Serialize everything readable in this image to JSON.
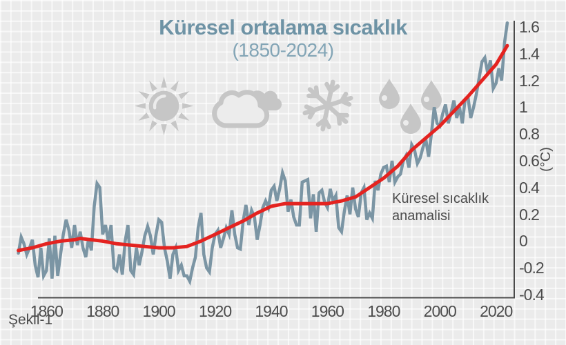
{
  "title": "Küresel ortalama sıcaklık",
  "subtitle": "(1850-2024)",
  "caption": "Şekil-1",
  "unit_label": "(°C)",
  "annotation": {
    "line1": "Küresel sıcaklık",
    "line2": "anamalisi"
  },
  "icons": [
    "sun-icon",
    "cloud-icon",
    "snowflake-icon",
    "raindrops-icon"
  ],
  "colors": {
    "title": "#6e93a5",
    "subtitle": "#83a5b6",
    "anomaly_blue": "#7b95a4",
    "trend_red": "#e42320",
    "axis": "#4a4a4a",
    "tick_text": "#4c4c4c",
    "background": "#ebebeb",
    "icon_gray": "#c6c6c6"
  },
  "chart_data": {
    "type": "line",
    "title": "Küresel ortalama sıcaklık (1850-2024)",
    "xlabel": "",
    "ylabel": "(°C)",
    "xlim": [
      1850,
      2025
    ],
    "ylim": [
      -0.4,
      1.6
    ],
    "grid": true,
    "legend_position": "none",
    "x_start": 1850,
    "x_step": 1,
    "xticks": [
      1860,
      1880,
      1900,
      1920,
      1940,
      1960,
      1980,
      2000,
      2020
    ],
    "yticks": [
      {
        "value": 1.6,
        "label": "1.6"
      },
      {
        "value": 1.4,
        "label": "1.4"
      },
      {
        "value": 1.2,
        "label": "1.2"
      },
      {
        "value": 1,
        "label": "1"
      },
      {
        "value": 0.8,
        "label": "0.8"
      },
      {
        "value": 0.6,
        "label": "0.6"
      },
      {
        "value": 0.4,
        "label": "0.4"
      },
      {
        "value": 0.2,
        "label": "0.2"
      },
      {
        "value": 0,
        "label": "0"
      },
      {
        "value": -0.2,
        "label": "-0.2"
      },
      {
        "value": -0.4,
        "label": "-0.4"
      }
    ],
    "series": [
      {
        "name": "Küresel sıcaklık anamalisi",
        "color": "#7b95a4",
        "values": [
          -0.09,
          0.03,
          -0.02,
          -0.1,
          -0.05,
          0.01,
          -0.18,
          -0.27,
          -0.05,
          -0.26,
          -0.22,
          0.02,
          -0.28,
          0.04,
          -0.26,
          -0.1,
          0.05,
          0.16,
          0.08,
          -0.05,
          0.12,
          -0.03,
          0.07,
          -0.05,
          -0.12,
          0.02,
          -0.07,
          0.26,
          0.43,
          0.4,
          0.05,
          0.12,
          0.0,
          0.12,
          -0.2,
          -0.22,
          -0.1,
          -0.25,
          0.0,
          0.12,
          -0.22,
          -0.25,
          -0.05,
          -0.18,
          -0.08,
          0.04,
          0.11,
          0.04,
          -0.1,
          0.05,
          0.16,
          0.14,
          -0.05,
          -0.15,
          -0.28,
          -0.1,
          -0.05,
          -0.22,
          -0.18,
          -0.26,
          -0.26,
          -0.3,
          -0.2,
          -0.12,
          0.1,
          0.21,
          -0.1,
          -0.2,
          -0.23,
          -0.05,
          0.05,
          0.08,
          -0.05,
          0.02,
          0.1,
          0.05,
          0.23,
          0.05,
          -0.05,
          -0.06,
          0.15,
          0.27,
          0.12,
          0.23,
          0.18,
          0.01,
          0.12,
          0.25,
          0.3,
          0.25,
          0.38,
          0.41,
          0.3,
          0.39,
          0.51,
          0.45,
          0.22,
          0.31,
          0.18,
          0.12,
          0.12,
          0.44,
          0.45,
          0.46,
          0.17,
          0.35,
          0.07,
          0.36,
          0.38,
          0.29,
          0.25,
          0.39,
          0.3,
          0.34,
          0.1,
          0.07,
          0.22,
          0.34,
          0.2,
          0.4,
          0.24,
          0.18,
          0.36,
          0.4,
          0.16,
          0.21,
          0.17,
          0.45,
          0.38,
          0.5,
          0.55,
          0.56,
          0.44,
          0.6,
          0.44,
          0.48,
          0.5,
          0.6,
          0.64,
          0.55,
          0.72,
          0.68,
          0.58,
          0.62,
          0.7,
          0.76,
          0.63,
          0.8,
          1.0,
          0.88,
          0.86,
          0.95,
          1.02,
          0.88,
          0.96,
          1.05,
          0.92,
          1.0,
          0.88,
          1.06,
          1.08,
          0.92,
          1.0,
          1.1,
          1.22,
          1.34,
          1.37,
          1.26,
          1.35,
          1.14,
          1.18,
          1.29,
          1.2,
          1.48,
          1.63
        ]
      },
      {
        "name": "Trend",
        "color": "#e42320",
        "points": [
          [
            1850,
            -0.07
          ],
          [
            1855,
            -0.05
          ],
          [
            1860,
            -0.02
          ],
          [
            1865,
            0.0
          ],
          [
            1870,
            0.01
          ],
          [
            1872,
            0.02
          ],
          [
            1876,
            0.01
          ],
          [
            1880,
            0.0
          ],
          [
            1885,
            -0.02
          ],
          [
            1890,
            -0.03
          ],
          [
            1895,
            -0.04
          ],
          [
            1900,
            -0.05
          ],
          [
            1905,
            -0.05
          ],
          [
            1910,
            -0.04
          ],
          [
            1915,
            0.0
          ],
          [
            1920,
            0.05
          ],
          [
            1925,
            0.1
          ],
          [
            1930,
            0.15
          ],
          [
            1935,
            0.21
          ],
          [
            1940,
            0.26
          ],
          [
            1945,
            0.28
          ],
          [
            1950,
            0.28
          ],
          [
            1955,
            0.28
          ],
          [
            1960,
            0.28
          ],
          [
            1965,
            0.3
          ],
          [
            1970,
            0.33
          ],
          [
            1975,
            0.4
          ],
          [
            1980,
            0.47
          ],
          [
            1985,
            0.56
          ],
          [
            1990,
            0.68
          ],
          [
            1995,
            0.77
          ],
          [
            2000,
            0.86
          ],
          [
            2005,
            0.97
          ],
          [
            2010,
            1.08
          ],
          [
            2015,
            1.2
          ],
          [
            2020,
            1.32
          ],
          [
            2024,
            1.46
          ]
        ]
      }
    ]
  }
}
